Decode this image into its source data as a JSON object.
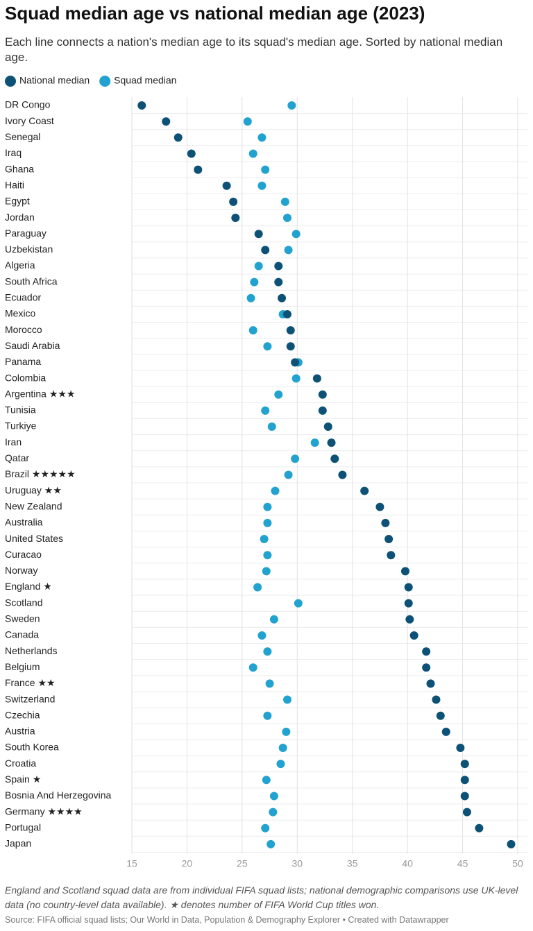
{
  "chart_data": {
    "type": "dot",
    "title": "Squad median age vs national median age (2023)",
    "subtitle": "Each line connects a nation's median age to its squad's median age. Sorted by national median age.",
    "notes": "England and Scotland squad data are from individual FIFA squad lists; national demographic comparisons use UK-level data (no country-level data available). ★ denotes number of FIFA World Cup titles won.",
    "source": "Source: FIFA official squad lists; Our World in Data, Population & Demography Explorer • Created with Datawrapper",
    "categories": [
      "DR Congo",
      "Ivory Coast",
      "Senegal",
      "Iraq",
      "Ghana",
      "Haiti",
      "Egypt",
      "Jordan",
      "Paraguay",
      "Uzbekistan",
      "Algeria",
      "South Africa",
      "Ecuador",
      "Mexico",
      "Morocco",
      "Saudi Arabia",
      "Panama",
      "Colombia",
      "Argentina ★★★",
      "Tunisia",
      "Turkiye",
      "Iran",
      "Qatar",
      "Brazil ★★★★★",
      "Uruguay ★★",
      "New Zealand",
      "Australia",
      "United States",
      "Curacao",
      "Norway",
      "England ★",
      "Scotland",
      "Sweden",
      "Canada",
      "Netherlands",
      "Belgium",
      "France ★★",
      "Switzerland",
      "Czechia",
      "Austria",
      "South Korea",
      "Croatia",
      "Spain ★",
      "Bosnia And Herzegovina",
      "Germany ★★★★",
      "Portugal",
      "Japan"
    ],
    "series": [
      {
        "name": "National median",
        "color": "#0d5276",
        "values": [
          15.9,
          18.1,
          19.2,
          20.4,
          21.0,
          23.6,
          24.2,
          24.4,
          26.5,
          27.1,
          28.3,
          28.3,
          28.6,
          29.1,
          29.4,
          29.4,
          29.8,
          31.8,
          32.3,
          32.3,
          32.8,
          33.1,
          33.4,
          34.1,
          36.1,
          37.5,
          38.0,
          38.3,
          38.5,
          39.8,
          40.1,
          40.1,
          40.2,
          40.6,
          41.7,
          41.7,
          42.1,
          42.6,
          43.0,
          43.5,
          44.8,
          45.2,
          45.2,
          45.2,
          45.4,
          46.5,
          49.4
        ]
      },
      {
        "name": "Squad median",
        "color": "#22a3cf",
        "values": [
          29.5,
          25.5,
          26.8,
          26.0,
          27.1,
          26.8,
          28.9,
          29.1,
          29.9,
          29.2,
          26.5,
          26.1,
          25.8,
          28.7,
          26.0,
          27.3,
          30.1,
          29.9,
          28.3,
          27.1,
          27.7,
          31.6,
          29.8,
          29.2,
          28.0,
          27.3,
          27.3,
          27.0,
          27.3,
          27.2,
          26.4,
          30.1,
          27.9,
          26.8,
          27.3,
          26.0,
          27.5,
          29.1,
          27.3,
          29.0,
          28.7,
          28.5,
          27.2,
          27.9,
          27.8,
          27.1,
          27.6
        ]
      }
    ],
    "xlim": [
      15,
      50
    ],
    "xticks": [
      15,
      20,
      25,
      30,
      35,
      40,
      45,
      50
    ],
    "grid": true
  }
}
